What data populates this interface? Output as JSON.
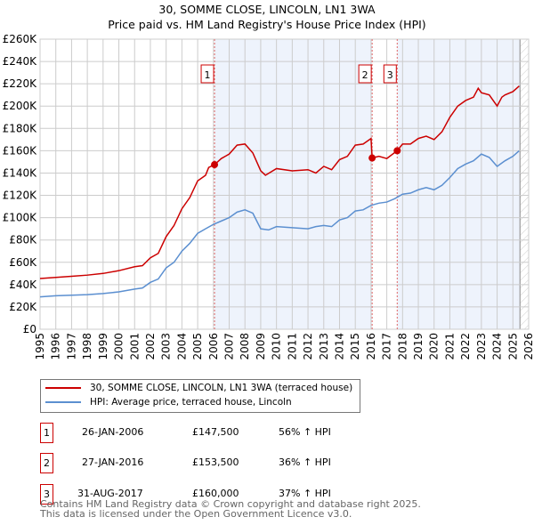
{
  "title": "30, SOMME CLOSE, LINCOLN, LN1 3WA",
  "subtitle": "Price paid vs. HM Land Registry's House Price Index (HPI)",
  "chart_data": {
    "type": "line",
    "title": "30, SOMME CLOSE, LINCOLN, LN1 3WA",
    "subtitle": "Price paid vs. HM Land Registry's House Price Index (HPI)",
    "xlim": [
      1995,
      2026
    ],
    "ylim": [
      0,
      260000
    ],
    "x_ticks": [
      "1995",
      "1996",
      "1997",
      "1998",
      "1999",
      "2000",
      "2001",
      "2002",
      "2003",
      "2004",
      "2005",
      "2006",
      "2007",
      "2008",
      "2009",
      "2010",
      "2011",
      "2012",
      "2013",
      "2014",
      "2015",
      "2016",
      "2017",
      "2018",
      "2019",
      "2020",
      "2021",
      "2022",
      "2023",
      "2024",
      "2025",
      "2026"
    ],
    "y_ticks": [
      "£0",
      "£20K",
      "£40K",
      "£60K",
      "£80K",
      "£100K",
      "£120K",
      "£140K",
      "£160K",
      "£180K",
      "£200K",
      "£220K",
      "£240K",
      "£260K"
    ],
    "grid": true,
    "colors": {
      "property": "#cc0000",
      "hpi": "#5b8fd0",
      "shade": "#eef3fc"
    },
    "series": [
      {
        "name": "30, SOMME CLOSE, LINCOLN, LN1 3WA (terraced house)",
        "color": "#cc0000",
        "x": [
          1995,
          1996,
          1997,
          1998,
          1999,
          2000,
          2001,
          2001.5,
          2002,
          2002.5,
          2003,
          2003.5,
          2004,
          2004.5,
          2005,
          2005.5,
          2005.7,
          2006.07,
          2006.5,
          2007,
          2007.5,
          2008,
          2008.5,
          2009,
          2009.3,
          2010,
          2011,
          2012,
          2012.5,
          2013,
          2013.5,
          2014,
          2014.5,
          2015,
          2015.5,
          2016,
          2016.07,
          2016.5,
          2017,
          2017.66,
          2018,
          2018.5,
          2019,
          2019.5,
          2020,
          2020.5,
          2021,
          2021.5,
          2022,
          2022.5,
          2022.8,
          2023,
          2023.5,
          2024,
          2024.3,
          2024.5,
          2025,
          2025.4
        ],
        "y": [
          45500,
          46500,
          47500,
          48500,
          50000,
          52500,
          56000,
          57000,
          64000,
          68000,
          83000,
          93000,
          108000,
          118000,
          133000,
          138000,
          145000,
          147500,
          153000,
          157000,
          165000,
          166000,
          158000,
          142000,
          138000,
          144000,
          142000,
          143000,
          140000,
          146000,
          143000,
          152000,
          155000,
          165000,
          166000,
          171000,
          153500,
          155000,
          153000,
          160000,
          166000,
          166000,
          171000,
          173000,
          170000,
          177000,
          190000,
          200000,
          205000,
          208000,
          216000,
          212000,
          210000,
          200000,
          208000,
          210000,
          213000,
          218000
        ]
      },
      {
        "name": "HPI: Average price, terraced house, Lincoln",
        "color": "#5b8fd0",
        "x": [
          1995,
          1996,
          1997,
          1998,
          1999,
          2000,
          2001,
          2001.5,
          2002,
          2002.5,
          2003,
          2003.5,
          2004,
          2004.5,
          2005,
          2005.5,
          2006,
          2006.5,
          2007,
          2007.5,
          2008,
          2008.5,
          2009,
          2009.5,
          2010,
          2011,
          2012,
          2012.5,
          2013,
          2013.5,
          2014,
          2014.5,
          2015,
          2015.5,
          2016,
          2016.5,
          2017,
          2017.5,
          2018,
          2018.5,
          2019,
          2019.5,
          2020,
          2020.5,
          2021,
          2021.5,
          2022,
          2022.5,
          2023,
          2023.5,
          2024,
          2024.5,
          2025,
          2025.4
        ],
        "y": [
          29000,
          30000,
          30500,
          31000,
          32000,
          33500,
          36000,
          37000,
          42000,
          45000,
          55000,
          60000,
          70000,
          77000,
          86000,
          90000,
          94000,
          97000,
          100000,
          105000,
          107000,
          104000,
          90000,
          89000,
          92000,
          91000,
          90000,
          92000,
          93000,
          92000,
          98000,
          100000,
          106000,
          107000,
          111000,
          113000,
          114000,
          117000,
          121000,
          122000,
          125000,
          127000,
          125000,
          129000,
          136000,
          144000,
          148000,
          151000,
          157000,
          154000,
          146000,
          151000,
          155000,
          160000
        ]
      }
    ],
    "sales": [
      {
        "label": "1",
        "date": "26-JAN-2006",
        "x": 2006.07,
        "price": "£147,500",
        "value": 147500,
        "hpi": "56% ↑ HPI"
      },
      {
        "label": "2",
        "date": "27-JAN-2016",
        "x": 2016.07,
        "price": "£153,500",
        "value": 153500,
        "hpi": "36% ↑ HPI"
      },
      {
        "label": "3",
        "date": "31-AUG-2017",
        "x": 2017.66,
        "price": "£160,000",
        "value": 160000,
        "hpi": "37% ↑ HPI"
      }
    ],
    "forecast_start": 2025.45,
    "legend_placement": "below"
  },
  "legend": {
    "property": "30, SOMME CLOSE, LINCOLN, LN1 3WA (terraced house)",
    "hpi": "HPI: Average price, terraced house, Lincoln"
  },
  "footer": {
    "line1": "Contains HM Land Registry data © Crown copyright and database right 2025.",
    "line2": "This data is licensed under the Open Government Licence v3.0."
  }
}
